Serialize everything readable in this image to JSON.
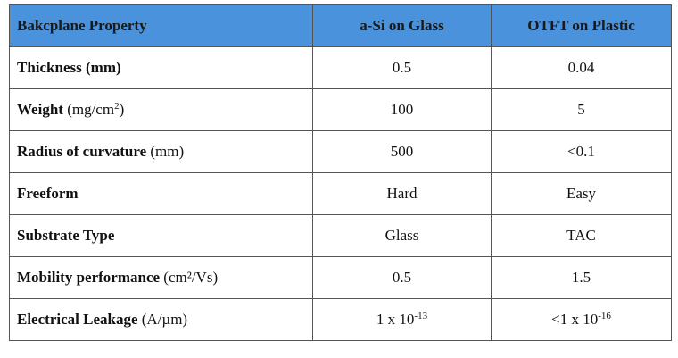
{
  "table": {
    "header": [
      "Bakcplane Property",
      "a-Si on Glass",
      "OTFT on Plastic"
    ],
    "rows": [
      [
        [
          {
            "bold": "Thickness (mm)"
          }
        ],
        [
          {
            "text": "0.5"
          }
        ],
        [
          {
            "text": "0.04"
          }
        ]
      ],
      [
        [
          {
            "bold": "Weight"
          },
          {
            "text": " (mg/cm"
          },
          {
            "sup": "2"
          },
          {
            "text": ")"
          }
        ],
        [
          {
            "text": "100"
          }
        ],
        [
          {
            "text": "5"
          }
        ]
      ],
      [
        [
          {
            "bold": "Radius of curvature"
          },
          {
            "text": " (mm)"
          }
        ],
        [
          {
            "text": "500"
          }
        ],
        [
          {
            "text": "<0.1"
          }
        ]
      ],
      [
        [
          {
            "bold": "Freeform"
          }
        ],
        [
          {
            "text": "Hard"
          }
        ],
        [
          {
            "text": "Easy"
          }
        ]
      ],
      [
        [
          {
            "bold": "Substrate Type"
          }
        ],
        [
          {
            "text": "Glass"
          }
        ],
        [
          {
            "text": "TAC"
          }
        ]
      ],
      [
        [
          {
            "bold": "Mobility performance"
          },
          {
            "text": " (cm²/Vs)"
          }
        ],
        [
          {
            "text": "0.5"
          }
        ],
        [
          {
            "text": "1.5"
          }
        ]
      ],
      [
        [
          {
            "bold": "Electrical Leakage"
          },
          {
            "text": " (A/µm)"
          }
        ],
        [
          {
            "text": "1 x 10"
          },
          {
            "sup": "-13"
          }
        ],
        [
          {
            "text": "<1 x 10"
          },
          {
            "sup": "-16"
          }
        ]
      ]
    ]
  }
}
